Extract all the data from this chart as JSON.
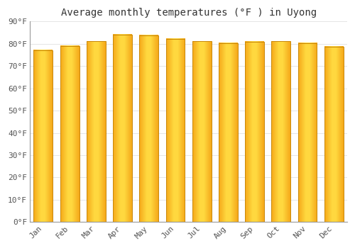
{
  "title": "Average monthly temperatures (°F ) in Uyong",
  "months": [
    "Jan",
    "Feb",
    "Mar",
    "Apr",
    "May",
    "Jun",
    "Jul",
    "Aug",
    "Sep",
    "Oct",
    "Nov",
    "Dec"
  ],
  "values": [
    77.2,
    79.0,
    81.1,
    84.0,
    83.8,
    82.2,
    81.1,
    80.2,
    81.0,
    81.1,
    80.2,
    78.8
  ],
  "bar_color_edge": "#F5A800",
  "bar_color_center": "#FFD740",
  "bar_border_color": "#C8880A",
  "background_color": "#FFFFFF",
  "plot_bg_color": "#FFFFFF",
  "grid_color": "#E0E0E0",
  "text_color": "#555555",
  "ylim": [
    0,
    90
  ],
  "yticks": [
    0,
    10,
    20,
    30,
    40,
    50,
    60,
    70,
    80,
    90
  ],
  "title_fontsize": 10,
  "tick_fontsize": 8
}
